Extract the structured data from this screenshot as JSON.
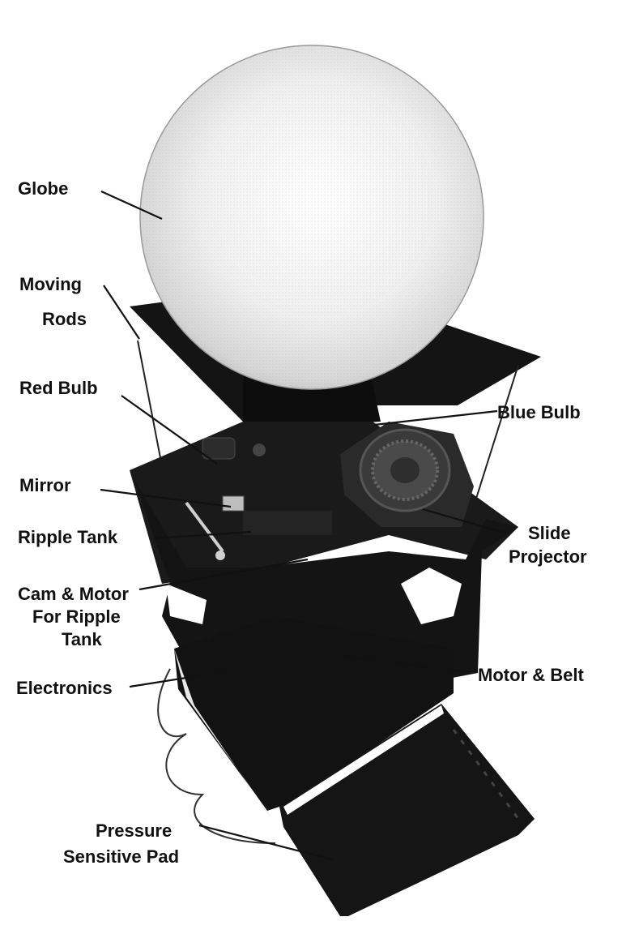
{
  "labels": {
    "globe": "Globe",
    "moving_rods_1": "Moving",
    "moving_rods_2": "Rods",
    "red_bulb": "Red Bulb",
    "blue_bulb": "Blue Bulb",
    "mirror": "Mirror",
    "ripple_tank": "Ripple Tank",
    "slide_projector_1": "Slide",
    "slide_projector_2": "Projector",
    "cam_motor_1": "Cam & Motor",
    "cam_motor_2": "For Ripple",
    "cam_motor_3": "Tank",
    "electronics": "Electronics",
    "motor_belt": "Motor & Belt",
    "pressure_pad_1": "Pressure",
    "pressure_pad_2": "Sensitive Pad"
  },
  "colors": {
    "ink": "#111111",
    "globe_light": "#f4f4f4",
    "globe_shade": "#b8b8b8",
    "panel": "#151515"
  }
}
